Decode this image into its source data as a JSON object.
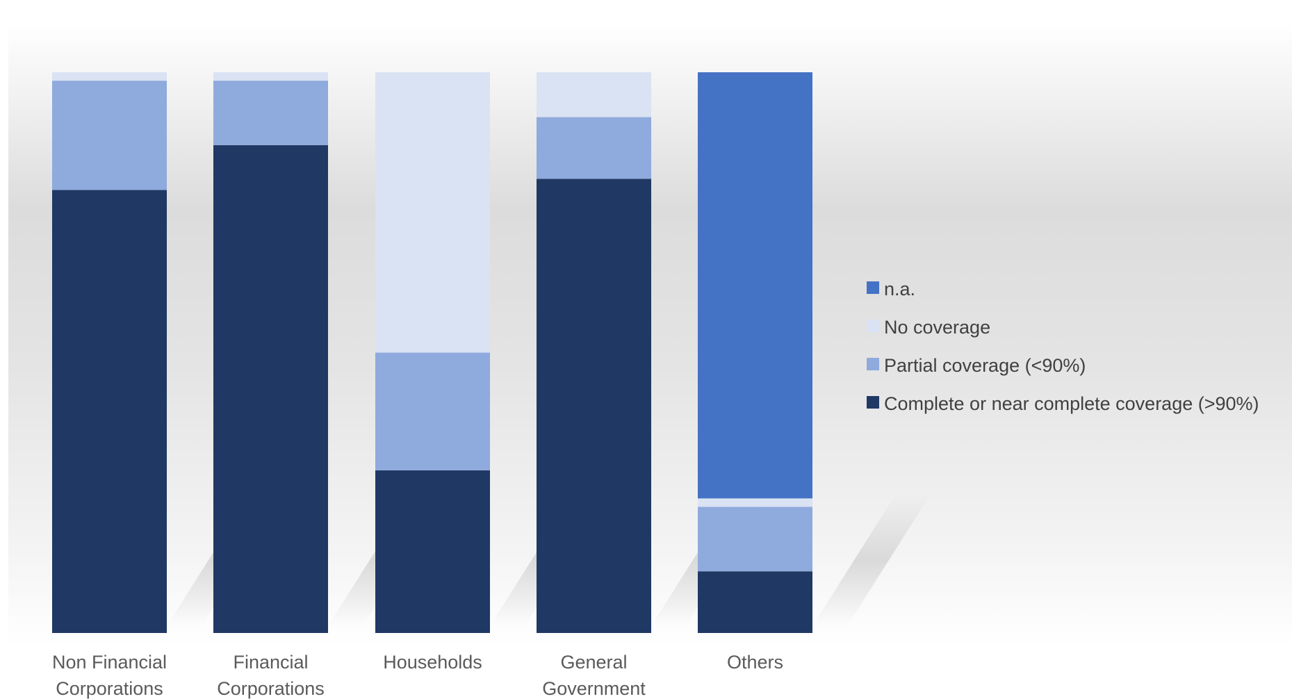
{
  "chart_data": {
    "type": "bar",
    "stacked": true,
    "percent_stacked": true,
    "title": "",
    "xlabel": "",
    "ylabel": "",
    "ylim": [
      0,
      100
    ],
    "grid": false,
    "legend_position": "right",
    "categories": [
      [
        "Non Financial",
        "Corporations"
      ],
      [
        "Financial",
        "Corporations"
      ],
      [
        "Households"
      ],
      [
        "General",
        "Government"
      ],
      [
        "Others"
      ]
    ],
    "series": [
      {
        "name": "Complete or near complete coverage (>90%)",
        "color": "#203864",
        "values": [
          79,
          87,
          29,
          81,
          11
        ]
      },
      {
        "name": "Partial coverage (<90%)",
        "color": "#8faadc",
        "values": [
          19.5,
          11.5,
          21,
          11,
          11.5
        ]
      },
      {
        "name": "No coverage",
        "color": "#dae3f3",
        "values": [
          1.5,
          1.5,
          50,
          8,
          1.5
        ]
      },
      {
        "name": "n.a.",
        "color": "#4472c4",
        "values": [
          0,
          0,
          0,
          0,
          76
        ]
      }
    ],
    "legend_order": [
      "n.a.",
      "No coverage",
      "Partial coverage (<90%)",
      "Complete or near complete coverage (>90%)"
    ]
  }
}
